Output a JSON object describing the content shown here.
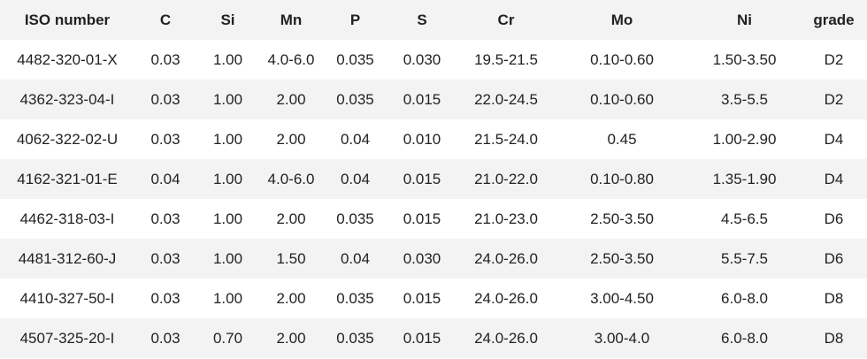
{
  "table": {
    "header": [
      "ISO number",
      "C",
      "Si",
      "Mn",
      "P",
      "S",
      "Cr",
      "Mo",
      "Ni",
      "grade"
    ],
    "rows": [
      [
        "4482-320-01-X",
        "0.03",
        "1.00",
        "4.0-6.0",
        "0.035",
        "0.030",
        "19.5-21.5",
        "0.10-0.60",
        "1.50-3.50",
        "D2"
      ],
      [
        "4362-323-04-I",
        "0.03",
        "1.00",
        "2.00",
        "0.035",
        "0.015",
        "22.0-24.5",
        "0.10-0.60",
        "3.5-5.5",
        "D2"
      ],
      [
        "4062-322-02-U",
        "0.03",
        "1.00",
        "2.00",
        "0.04",
        "0.010",
        "21.5-24.0",
        "0.45",
        "1.00-2.90",
        "D4"
      ],
      [
        "4162-321-01-E",
        "0.04",
        "1.00",
        "4.0-6.0",
        "0.04",
        "0.015",
        "21.0-22.0",
        "0.10-0.80",
        "1.35-1.90",
        "D4"
      ],
      [
        "4462-318-03-I",
        "0.03",
        "1.00",
        "2.00",
        "0.035",
        "0.015",
        "21.0-23.0",
        "2.50-3.50",
        "4.5-6.5",
        "D6"
      ],
      [
        "4481-312-60-J",
        "0.03",
        "1.00",
        "1.50",
        "0.04",
        "0.030",
        "24.0-26.0",
        "2.50-3.50",
        "5.5-7.5",
        "D6"
      ],
      [
        "4410-327-50-I",
        "0.03",
        "1.00",
        "2.00",
        "0.035",
        "0.015",
        "24.0-26.0",
        "3.00-4.50",
        "6.0-8.0",
        "D8"
      ],
      [
        "4507-325-20-I",
        "0.03",
        "0.70",
        "2.00",
        "0.035",
        "0.015",
        "24.0-26.0",
        "3.00-4.0",
        "6.0-8.0",
        "D8"
      ]
    ]
  }
}
